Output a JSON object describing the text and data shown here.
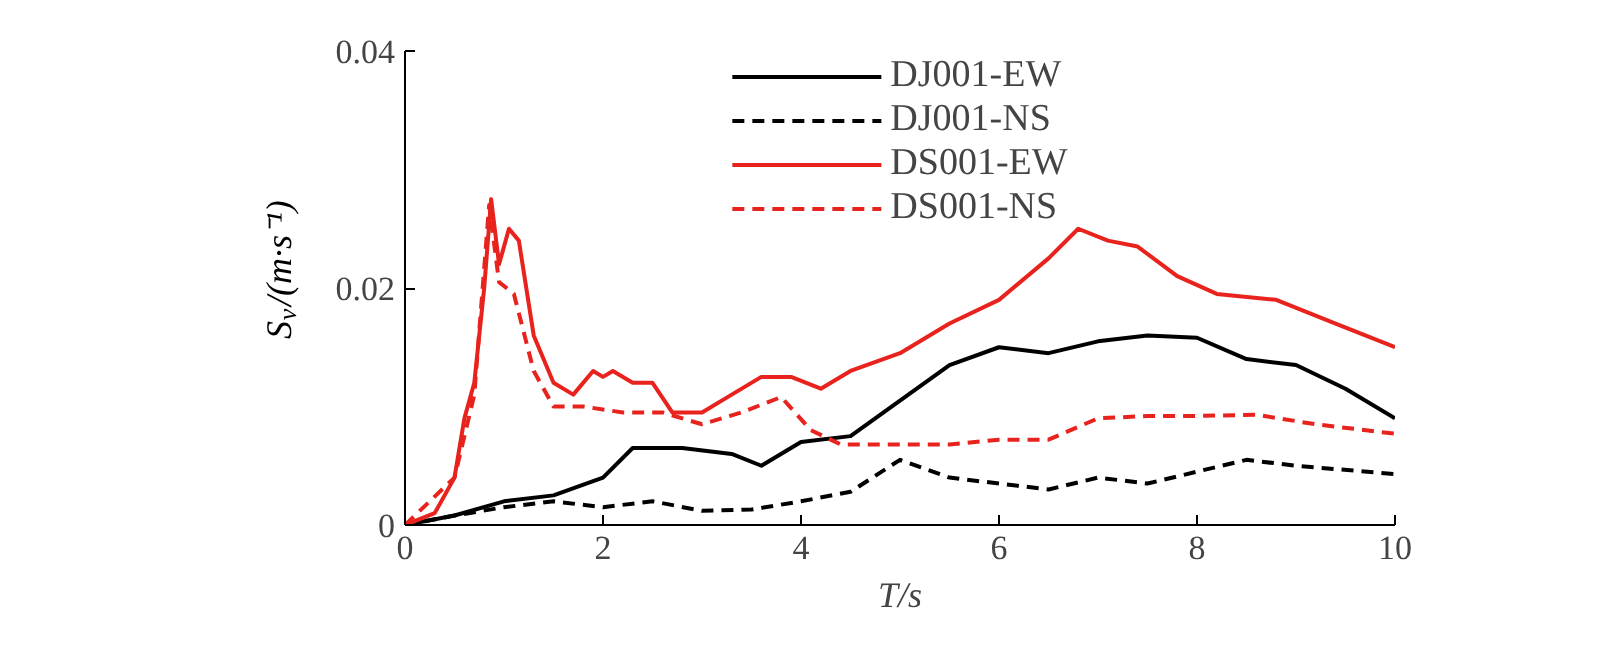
{
  "chart_data": {
    "type": "line",
    "xlabel": "T/s",
    "ylabel": "S$_{v}$/(m·s⁻¹)",
    "xlim": [
      0,
      10
    ],
    "ylim": [
      0,
      0.04
    ],
    "xticks": [
      0,
      2,
      4,
      6,
      8,
      10
    ],
    "yticks": [
      0,
      0.02,
      0.04
    ],
    "grid": false,
    "legend": "top",
    "series": [
      {
        "name": "DJ001-EW",
        "color": "#000000",
        "line_style": "solid",
        "x": [
          0,
          0.5,
          1,
          1.5,
          2,
          2.3,
          2.8,
          3.3,
          3.6,
          4,
          4.5,
          5,
          5.5,
          6,
          6.5,
          7,
          7.5,
          8,
          8.5,
          9,
          9.5,
          10
        ],
        "values": [
          0,
          0.0008,
          0.002,
          0.0025,
          0.004,
          0.0065,
          0.0065,
          0.006,
          0.005,
          0.007,
          0.0075,
          0.0105,
          0.0135,
          0.015,
          0.0145,
          0.0155,
          0.016,
          0.0158,
          0.014,
          0.0135,
          0.0115,
          0.009
        ]
      },
      {
        "name": "DJ001-NS",
        "color": "#000000",
        "line_style": "dashed",
        "x": [
          0,
          0.5,
          1,
          1.5,
          2,
          2.5,
          3,
          3.5,
          4,
          4.5,
          5,
          5.5,
          6,
          6.5,
          7,
          7.5,
          8,
          8.5,
          9,
          10
        ],
        "values": [
          0,
          0.0008,
          0.0015,
          0.002,
          0.0015,
          0.002,
          0.0012,
          0.0013,
          0.002,
          0.0028,
          0.0055,
          0.004,
          0.0035,
          0.003,
          0.004,
          0.0035,
          0.0045,
          0.0055,
          0.005,
          0.0043
        ]
      },
      {
        "name": "DS001-EW",
        "color": "#e8221c",
        "line_style": "solid",
        "x": [
          0,
          0.3,
          0.5,
          0.6,
          0.7,
          0.8,
          0.87,
          0.95,
          1.05,
          1.15,
          1.3,
          1.5,
          1.7,
          1.9,
          2,
          2.1,
          2.3,
          2.5,
          2.7,
          3,
          3.3,
          3.6,
          3.9,
          4.2,
          4.5,
          5,
          5.5,
          6,
          6.5,
          6.8,
          7.1,
          7.4,
          7.8,
          8.2,
          8.8,
          9.4,
          10
        ],
        "values": [
          0,
          0.001,
          0.004,
          0.009,
          0.012,
          0.02,
          0.0275,
          0.022,
          0.025,
          0.024,
          0.016,
          0.012,
          0.011,
          0.013,
          0.0125,
          0.013,
          0.012,
          0.012,
          0.0095,
          0.0095,
          0.011,
          0.0125,
          0.0125,
          0.0115,
          0.013,
          0.0145,
          0.017,
          0.019,
          0.0225,
          0.025,
          0.024,
          0.0235,
          0.021,
          0.0195,
          0.019,
          0.017,
          0.015
        ]
      },
      {
        "name": "DS001-NS",
        "color": "#e8221c",
        "line_style": "dashed",
        "x": [
          0,
          0.5,
          0.7,
          0.85,
          0.95,
          1.1,
          1.3,
          1.5,
          1.8,
          2.2,
          2.6,
          3,
          3.4,
          3.8,
          4.1,
          4.4,
          5,
          5.5,
          6,
          6.5,
          7,
          7.5,
          8,
          8.6,
          9.2,
          10
        ],
        "values": [
          0,
          0.004,
          0.011,
          0.027,
          0.0205,
          0.0195,
          0.013,
          0.01,
          0.01,
          0.0095,
          0.0095,
          0.0085,
          0.0095,
          0.0108,
          0.008,
          0.0068,
          0.0068,
          0.0068,
          0.0072,
          0.0072,
          0.009,
          0.0092,
          0.0092,
          0.0093,
          0.0085,
          0.0077
        ]
      }
    ]
  }
}
